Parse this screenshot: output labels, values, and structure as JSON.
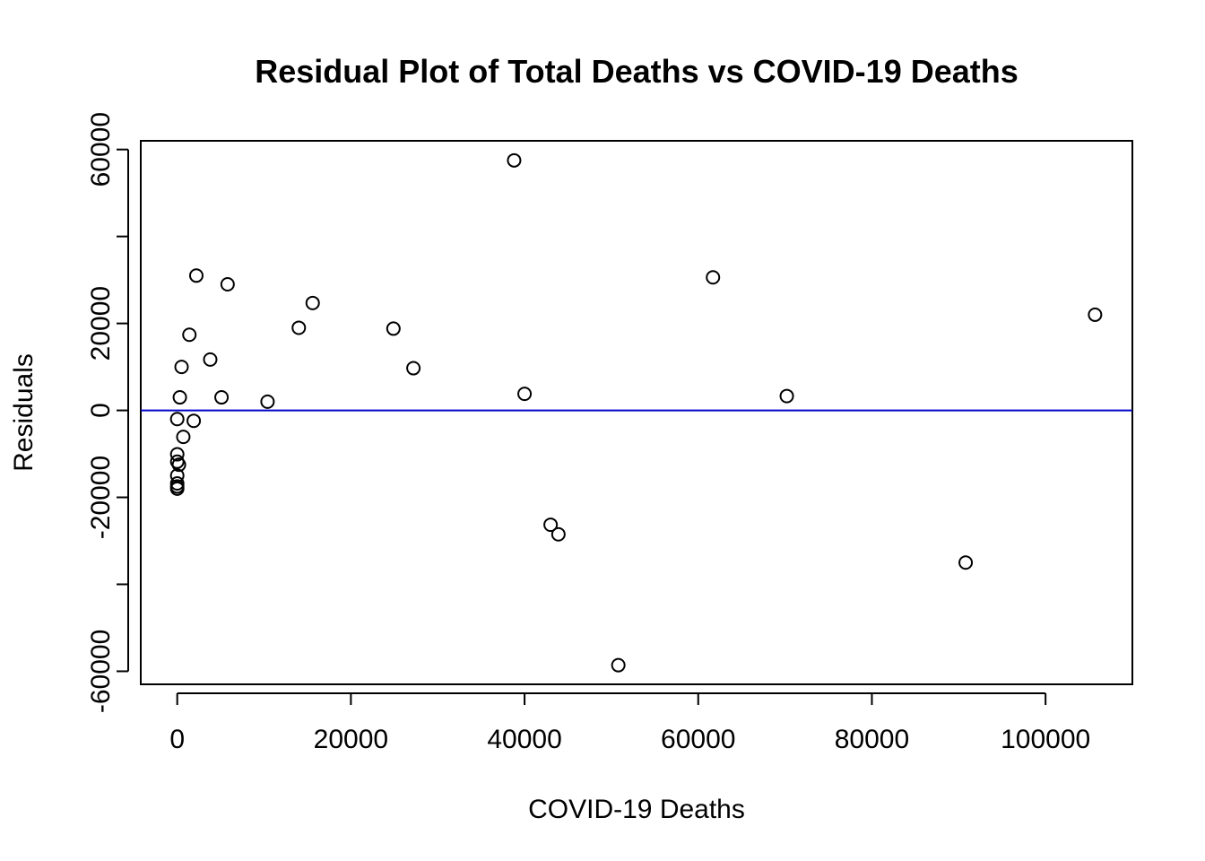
{
  "chart_data": {
    "type": "scatter",
    "title": "Residual Plot of Total Deaths vs COVID-19 Deaths",
    "xlabel": "COVID-19 Deaths",
    "ylabel": "Residuals",
    "xlim": [
      -4200,
      110000
    ],
    "ylim": [
      -63000,
      62000
    ],
    "x_ticks": [
      0,
      20000,
      40000,
      60000,
      80000,
      100000
    ],
    "x_tick_labels": [
      "0",
      "20000",
      "40000",
      "60000",
      "80000",
      "100000"
    ],
    "y_ticks": [
      -60000,
      -40000,
      -20000,
      0,
      20000,
      40000,
      60000
    ],
    "y_tick_labels": [
      "-60000",
      "",
      "-20000",
      "0",
      "20000",
      "",
      "60000"
    ],
    "grid": false,
    "reference_line": {
      "y": 0,
      "color": "#0000cc"
    },
    "marker": "open-circle",
    "points": [
      {
        "x": 38800,
        "y": 57500
      },
      {
        "x": 2200,
        "y": 31000
      },
      {
        "x": 5800,
        "y": 29000
      },
      {
        "x": 61700,
        "y": 30600
      },
      {
        "x": 15600,
        "y": 24700
      },
      {
        "x": 105700,
        "y": 22000
      },
      {
        "x": 14000,
        "y": 19000
      },
      {
        "x": 24900,
        "y": 18800
      },
      {
        "x": 1400,
        "y": 17400
      },
      {
        "x": 3800,
        "y": 11700
      },
      {
        "x": 500,
        "y": 10000
      },
      {
        "x": 27200,
        "y": 9700
      },
      {
        "x": 40000,
        "y": 3800
      },
      {
        "x": 70200,
        "y": 3300
      },
      {
        "x": 300,
        "y": 3000
      },
      {
        "x": 5100,
        "y": 3000
      },
      {
        "x": 10400,
        "y": 2000
      },
      {
        "x": 0,
        "y": -2000
      },
      {
        "x": 1900,
        "y": -2400
      },
      {
        "x": 700,
        "y": -6100
      },
      {
        "x": 0,
        "y": -10100
      },
      {
        "x": 0,
        "y": -11800
      },
      {
        "x": 200,
        "y": -12500
      },
      {
        "x": 0,
        "y": -15000
      },
      {
        "x": 0,
        "y": -16800
      },
      {
        "x": 0,
        "y": -17500
      },
      {
        "x": 0,
        "y": -18000
      },
      {
        "x": 43000,
        "y": -26300
      },
      {
        "x": 43900,
        "y": -28500
      },
      {
        "x": 90800,
        "y": -35000
      },
      {
        "x": 50800,
        "y": -58600
      }
    ]
  }
}
